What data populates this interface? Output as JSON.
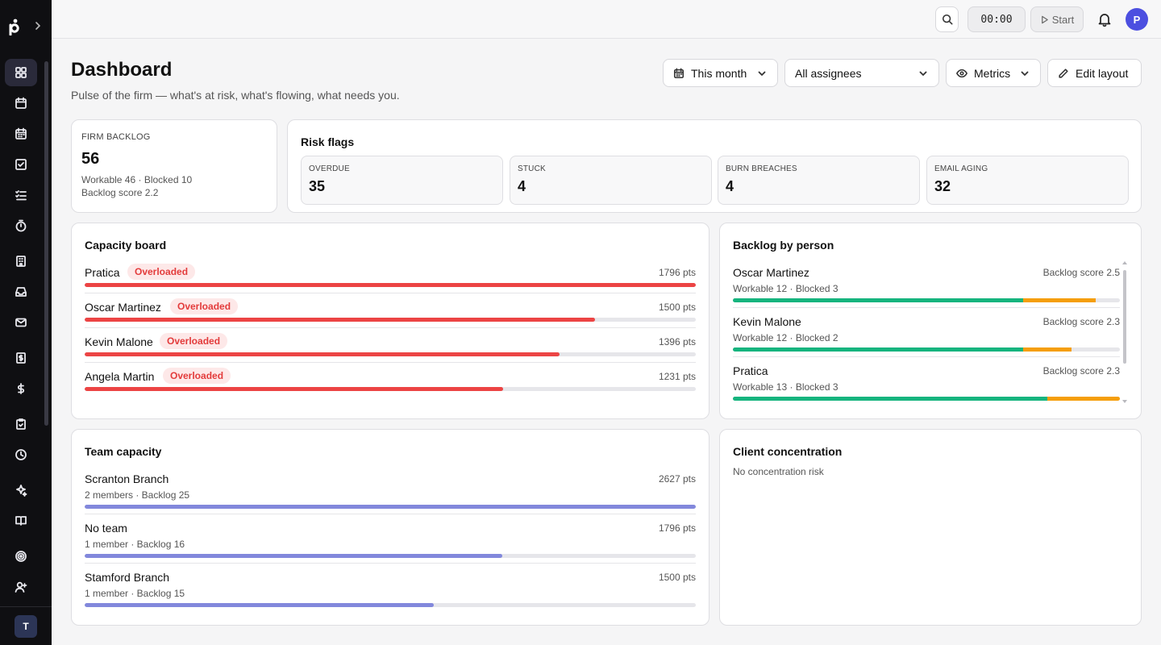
{
  "app": {
    "logo_letter": "p",
    "team_initial": "T",
    "user_initial": "P"
  },
  "topbar": {
    "timer": "00:00",
    "start_label": "Start"
  },
  "header": {
    "title": "Dashboard",
    "subtitle": "Pulse of the firm — what's at risk, what's flowing, what needs you.",
    "period": "This month",
    "assignees": "All assignees",
    "metrics": "Metrics",
    "edit_layout": "Edit layout"
  },
  "sidebar": {
    "items": [
      "grid-icon",
      "calendar-icon",
      "calendar-grid-icon",
      "checkbox-icon",
      "list-check-icon",
      "timer-icon",
      "building-icon",
      "inbox-icon",
      "mail-icon",
      "receipt-icon",
      "dollar-icon",
      "clipboard-icon",
      "clock-icon",
      "sparkle-icon",
      "book-icon",
      "target-icon",
      "user-plus-icon"
    ]
  },
  "backlog": {
    "label": "FIRM BACKLOG",
    "value": "56",
    "detail": "Workable 46 · Blocked 10",
    "score": "Backlog score 2.2"
  },
  "risk": {
    "title": "Risk flags",
    "items": [
      {
        "label": "OVERDUE",
        "value": "35"
      },
      {
        "label": "STUCK",
        "value": "4"
      },
      {
        "label": "BURN BREACHES",
        "value": "4"
      },
      {
        "label": "EMAIL AGING",
        "value": "32"
      }
    ]
  },
  "capacity": {
    "title": "Capacity board",
    "rows": [
      {
        "name": "Pratica",
        "badge": "Overloaded",
        "pts": "1796 pts",
        "fill": 1.0
      },
      {
        "name": "Oscar Martinez",
        "badge": "Overloaded",
        "pts": "1500 pts",
        "fill": 0.835
      },
      {
        "name": "Kevin Malone",
        "badge": "Overloaded",
        "pts": "1396 pts",
        "fill": 0.777
      },
      {
        "name": "Angela Martin",
        "badge": "Overloaded",
        "pts": "1231 pts",
        "fill": 0.685
      }
    ]
  },
  "backlog_person": {
    "title": "Backlog by person",
    "rows": [
      {
        "name": "Oscar Martinez",
        "score": "Backlog score 2.5",
        "detail": "Workable 12 · Blocked 3",
        "workable": 0.75,
        "blocked": 0.1875
      },
      {
        "name": "Kevin Malone",
        "score": "Backlog score 2.3",
        "detail": "Workable 12 · Blocked 2",
        "workable": 0.75,
        "blocked": 0.125
      },
      {
        "name": "Pratica",
        "score": "Backlog score 2.3",
        "detail": "Workable 13 · Blocked 3",
        "workable": 0.8125,
        "blocked": 0.1875
      }
    ]
  },
  "team": {
    "title": "Team capacity",
    "rows": [
      {
        "name": "Scranton Branch",
        "detail": "2 members · Backlog 25",
        "pts": "2627 pts",
        "fill": 1.0
      },
      {
        "name": "No team",
        "detail": "1 member · Backlog 16",
        "pts": "1796 pts",
        "fill": 0.684
      },
      {
        "name": "Stamford Branch",
        "detail": "1 member · Backlog 15",
        "pts": "1500 pts",
        "fill": 0.571
      }
    ]
  },
  "concentration": {
    "title": "Client concentration",
    "message": "No concentration risk"
  },
  "colors": {
    "overloaded": "#ec4444",
    "workable": "#16b47e",
    "blocked": "#f59e0b",
    "team": "#8288dc"
  }
}
